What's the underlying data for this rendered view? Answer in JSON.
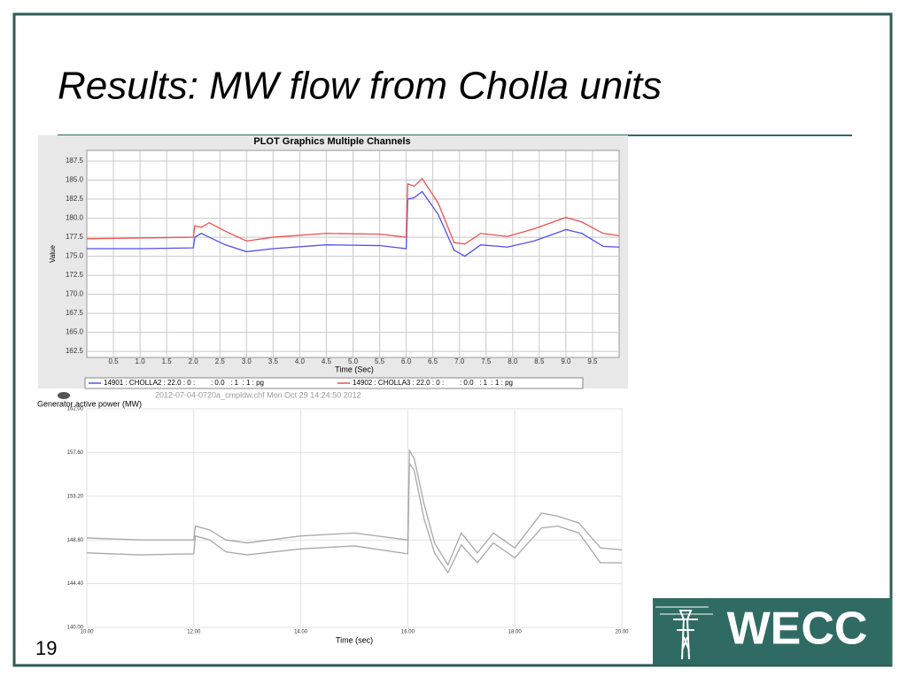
{
  "slide": {
    "title": "Results: MW flow from Cholla units",
    "page_number": "19",
    "logo": "WECC"
  },
  "chart_data": [
    {
      "type": "line",
      "title": "PLOT Graphics Multiple Channels",
      "y_label": "Value",
      "x_label": "Time (Sec)",
      "x": [
        0,
        1,
        2,
        2.03,
        2.15,
        2.3,
        2.6,
        3.0,
        3.5,
        4.5,
        5.5,
        6.0,
        6.03,
        6.15,
        6.3,
        6.6,
        6.9,
        7.1,
        7.4,
        7.9,
        8.4,
        9.0,
        9.3,
        9.7,
        10
      ],
      "series": [
        {
          "name": "14901 : CHOLLA2 : 22.0 : 0 :        : 0.0   : 1  : 1 : pg",
          "color": "#5050ee",
          "values": [
            176,
            176,
            176.1,
            177.5,
            178.0,
            177.5,
            176.5,
            175.6,
            176.0,
            176.5,
            176.4,
            176.0,
            182.5,
            182.7,
            183.5,
            180.5,
            175.8,
            175.0,
            176.5,
            176.2,
            177.0,
            178.5,
            178.0,
            176.3,
            176.2
          ]
        },
        {
          "name": "14902 : CHOLLA3 : 22.0 : 0 :        : 0.0   : 1  : 1 : pg",
          "color": "#ee5050",
          "values": [
            177.3,
            177.4,
            177.5,
            179.0,
            178.8,
            179.4,
            178.3,
            177.0,
            177.5,
            178.0,
            177.9,
            177.5,
            184.5,
            184.2,
            185.2,
            182.0,
            176.8,
            176.6,
            178.0,
            177.6,
            178.6,
            180.1,
            179.5,
            178.0,
            177.7
          ]
        }
      ],
      "xlim": [
        0,
        10
      ],
      "xticks": [
        0.5,
        {
          "value": 1,
          "label": "1.0"
        },
        1.5,
        {
          "value": 2,
          "label": "2.0"
        },
        2.5,
        {
          "value": 3,
          "label": "3.0"
        },
        3.5,
        {
          "value": 4,
          "label": "4.0"
        },
        4.5,
        {
          "value": 5,
          "label": "5.0"
        },
        5.5,
        {
          "value": 6,
          "label": "6.0"
        },
        6.5,
        {
          "value": 7,
          "label": "7.0"
        },
        7.5,
        {
          "value": 8,
          "label": "8.0"
        },
        8.5,
        {
          "value": 9,
          "label": "9.0"
        },
        9.5
      ],
      "ylim": [
        161.7,
        188.9
      ],
      "yticks": [
        162.5,
        {
          "value": 165,
          "label": "165.0"
        },
        167.5,
        {
          "value": 170,
          "label": "170.0"
        },
        172.5,
        {
          "value": 175,
          "label": "175.0"
        },
        177.5,
        {
          "value": 180,
          "label": "180.0"
        },
        182.5,
        {
          "value": 185,
          "label": "185.0"
        },
        187.5
      ],
      "grid": true
    },
    {
      "type": "line",
      "title": "Generator active power (MW)",
      "subtitle": "2012-07-04-0720a_cmpldw.chf    Mon Oct 29 14:24:50 2012",
      "x_label": "Time (sec)",
      "x": [
        10,
        11,
        12,
        12.03,
        12.3,
        12.6,
        13,
        14,
        15,
        16,
        16.03,
        16.12,
        16.3,
        16.5,
        16.75,
        17.0,
        17.3,
        17.6,
        18.0,
        18.5,
        18.8,
        19.2,
        19.6,
        20
      ],
      "series": [
        {
          "color": "#a8a8a8",
          "values": [
            149.0,
            148.8,
            148.8,
            150.2,
            149.8,
            148.8,
            148.5,
            149.2,
            149.5,
            148.8,
            157.8,
            157.0,
            152.5,
            148.5,
            146.3,
            149.5,
            147.5,
            149.5,
            148.0,
            151.5,
            151.2,
            150.5,
            148.0,
            147.8
          ]
        },
        {
          "color": "#a8a8a8",
          "values": [
            147.5,
            147.3,
            147.4,
            149.2,
            148.8,
            147.6,
            147.3,
            147.9,
            148.2,
            147.4,
            156.5,
            155.8,
            151.0,
            147.5,
            145.5,
            148.3,
            146.5,
            148.5,
            147.0,
            150.0,
            150.2,
            149.5,
            146.5,
            146.5
          ]
        }
      ],
      "xlim": [
        10,
        20
      ],
      "xticks": [
        {
          "value": 10,
          "label": "10.00"
        },
        {
          "value": 12,
          "label": "12.00"
        },
        {
          "value": 14,
          "label": "14.00"
        },
        {
          "value": 16,
          "label": "16.00"
        },
        {
          "value": 18,
          "label": "18.00"
        },
        {
          "value": 20,
          "label": "20.00"
        }
      ],
      "ylim": [
        140,
        162
      ],
      "yticks": [
        {
          "value": 140,
          "label": "140.00"
        },
        {
          "value": 144.4,
          "label": "144.40"
        },
        {
          "value": 148.8,
          "label": "148.80"
        },
        {
          "value": 153.2,
          "label": "153.20"
        },
        {
          "value": 157.6,
          "label": "157.60"
        },
        {
          "value": 162,
          "label": "162.00"
        }
      ],
      "grid": true
    }
  ]
}
